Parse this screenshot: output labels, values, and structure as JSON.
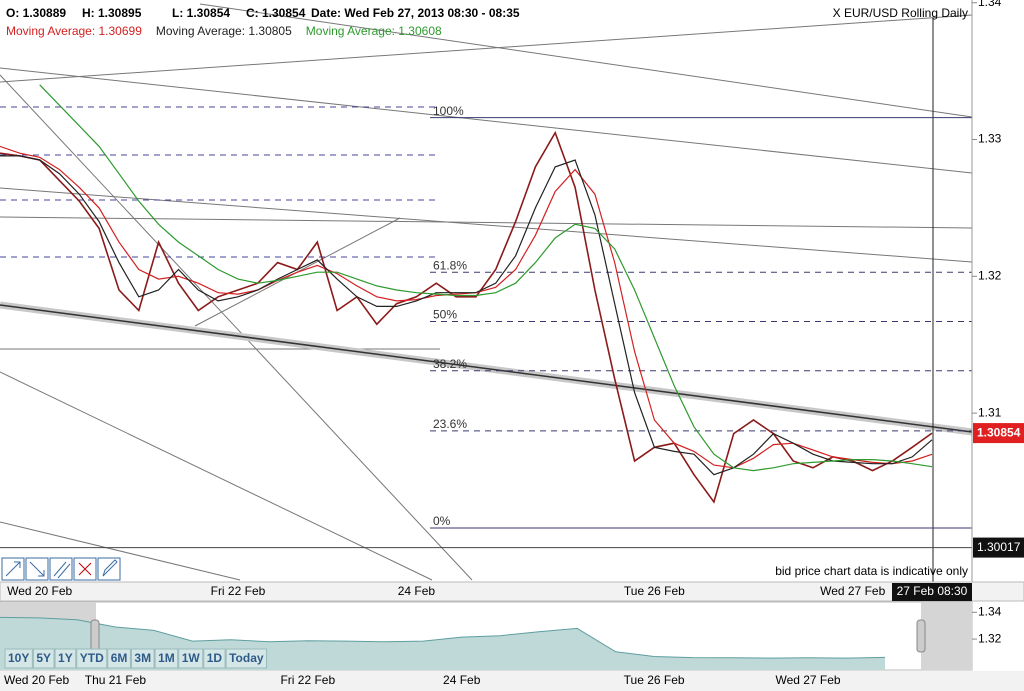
{
  "header": {
    "ohlc": [
      "O: 1.30889",
      "H: 1.30895",
      "L: 1.30854",
      "C: 1.30854"
    ],
    "date": "Date: Wed Feb 27, 2013 08:30 - 08:35",
    "instrument": "X EUR/USD Rolling Daily"
  },
  "notice": "bid price chart data is indicative only",
  "range_buttons": [
    "10Y",
    "5Y",
    "1Y",
    "YTD",
    "6M",
    "3M",
    "1M",
    "1W",
    "1D",
    "Today"
  ],
  "chart_data": [
    {
      "type": "line",
      "categories": [
        null,
        null,
        "Wed 20 Feb",
        null,
        null,
        null,
        null,
        null,
        null,
        null,
        null,
        null,
        "Fri 22 Feb",
        null,
        null,
        null,
        null,
        null,
        null,
        null,
        null,
        "24 Feb",
        null,
        null,
        null,
        null,
        null,
        null,
        null,
        null,
        null,
        null,
        null,
        "Tue 26 Feb",
        null,
        null,
        null,
        null,
        null,
        null,
        null,
        null,
        null,
        "Wed 27 Feb",
        null,
        null,
        null,
        "27 Feb 08:30"
      ],
      "series": [
        {
          "color": "#8b1a1a",
          "values": [
            1.329,
            1.3288,
            1.3285,
            1.327,
            1.3255,
            1.3235,
            1.319,
            1.3175,
            1.3225,
            1.3195,
            1.3175,
            1.3185,
            1.319,
            1.3195,
            1.321,
            1.3205,
            1.3225,
            1.3175,
            1.3185,
            1.3165,
            1.318,
            1.3185,
            1.3195,
            1.3185,
            1.3185,
            1.3205,
            1.324,
            1.328,
            1.3305,
            1.3265,
            1.319,
            1.3125,
            1.3065,
            1.3075,
            1.3078,
            1.3055,
            1.3035,
            1.3085,
            1.3095,
            1.3085,
            1.3065,
            1.306,
            1.3068,
            1.3065,
            1.3058,
            1.3065,
            1.3075,
            1.30854
          ]
        },
        {
          "name": "Moving Average: 1.30699",
          "color": "#d42020",
          "values": [
            1.3295,
            1.329,
            1.3287,
            1.3278,
            1.3265,
            1.325,
            1.3225,
            1.3205,
            1.3198,
            1.32,
            1.3195,
            1.3188,
            1.3187,
            1.319,
            1.3197,
            1.3203,
            1.3208,
            1.3202,
            1.3193,
            1.3185,
            1.3182,
            1.3183,
            1.3186,
            1.3187,
            1.3188,
            1.3192,
            1.3205,
            1.323,
            1.3262,
            1.3278,
            1.326,
            1.321,
            1.3145,
            1.3095,
            1.3078,
            1.3072,
            1.3062,
            1.306,
            1.3067,
            1.3077,
            1.3078,
            1.3073,
            1.3068,
            1.3066,
            1.3064,
            1.3063,
            1.3065,
            1.30699
          ]
        },
        {
          "name": "Moving Average: 1.30805",
          "color": "#222222",
          "values": [
            1.3288,
            1.3288,
            1.3285,
            1.3275,
            1.326,
            1.324,
            1.321,
            1.3185,
            1.319,
            1.3205,
            1.319,
            1.3182,
            1.3185,
            1.319,
            1.3198,
            1.3205,
            1.3212,
            1.3198,
            1.3185,
            1.3178,
            1.3178,
            1.3182,
            1.3188,
            1.3188,
            1.3188,
            1.3195,
            1.3215,
            1.325,
            1.328,
            1.3285,
            1.3245,
            1.318,
            1.3115,
            1.3075,
            1.3072,
            1.307,
            1.3055,
            1.306,
            1.307,
            1.3085,
            1.3078,
            1.307,
            1.3065,
            1.3064,
            1.3063,
            1.3063,
            1.3068,
            1.30805
          ]
        },
        {
          "name": "Moving Average: 1.30608",
          "color": "#2e9a2e",
          "values": [
            null,
            null,
            1.334,
            1.3325,
            1.331,
            1.3295,
            1.3275,
            1.3255,
            1.3238,
            1.3225,
            1.3215,
            1.3205,
            1.3198,
            1.3195,
            1.3197,
            1.32,
            1.3203,
            1.3203,
            1.3198,
            1.3193,
            1.319,
            1.3188,
            1.3187,
            1.3186,
            1.3186,
            1.3188,
            1.3195,
            1.321,
            1.3228,
            1.3238,
            1.3235,
            1.322,
            1.319,
            1.3155,
            1.312,
            1.309,
            1.307,
            1.306,
            1.3058,
            1.306,
            1.3063,
            1.3064,
            1.3065,
            1.3066,
            1.3066,
            1.3065,
            1.3063,
            1.30608
          ]
        }
      ],
      "ylim": [
        1.2978,
        1.3402
      ],
      "yticks": [
        1.34,
        1.33,
        1.32,
        1.31
      ],
      "fib_levels": [
        {
          "label": "100%",
          "value": 1.3316
        },
        {
          "label": "61.8%",
          "value": 1.3203
        },
        {
          "label": "50%",
          "value": 1.3167
        },
        {
          "label": "38.2%",
          "value": 1.3131
        },
        {
          "label": "23.6%",
          "value": 1.3087
        },
        {
          "label": "0%",
          "value": 1.3016
        }
      ],
      "last_price": 1.30854,
      "low_line": 1.30017
    },
    {
      "type": "area",
      "color": "#5f9ea0",
      "categories": [
        null,
        "Wed 20 Feb",
        null,
        "Thu 21 Feb",
        null,
        null,
        null,
        null,
        "Fri 22 Feb",
        null,
        null,
        null,
        "24 Feb",
        null,
        null,
        null,
        null,
        "Tue 26 Feb",
        null,
        null,
        null,
        "Wed 27 Feb",
        null,
        null
      ],
      "values": [
        1.3362,
        1.3358,
        1.3345,
        1.329,
        1.3265,
        1.3185,
        1.3195,
        1.318,
        1.3188,
        1.3185,
        1.318,
        1.3185,
        1.3215,
        1.3225,
        1.3255,
        1.328,
        1.3105,
        1.307,
        1.3062,
        1.306,
        1.3058,
        1.306,
        1.3058,
        1.3063
      ],
      "ylim": [
        1.2969,
        1.3477
      ],
      "yticks": [
        1.34,
        1.32
      ]
    }
  ]
}
